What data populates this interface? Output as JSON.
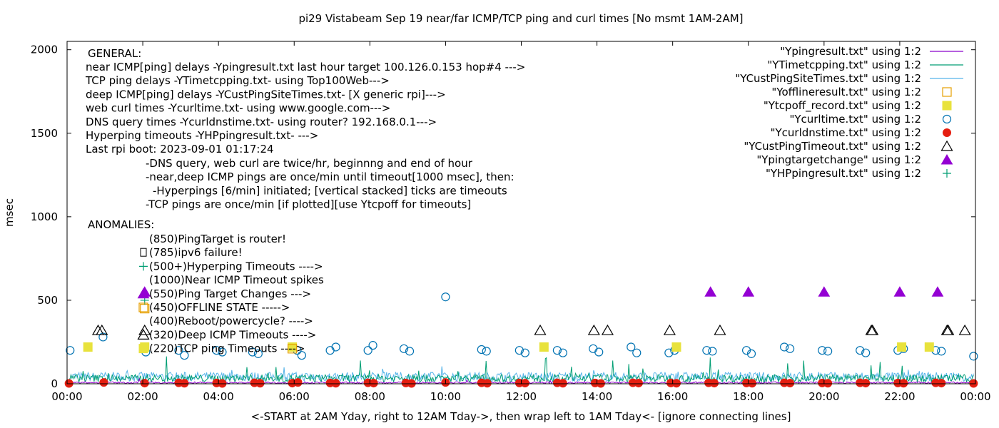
{
  "chart_data": {
    "type": "scatter",
    "title": "pi29 Vistabeam Sep 19  near/far ICMP/TCP ping and curl times [No msmt 1AM-2AM]",
    "xlabel": "<-START at 2AM Yday, right to 12AM Tday->, then wrap left to 1AM Tday<- [ignore connecting lines]",
    "ylabel": "msec",
    "x_unit": "hours",
    "xlim": [
      0,
      24
    ],
    "ylim": [
      0,
      2050
    ],
    "x_ticks": [
      0,
      2,
      4,
      6,
      8,
      10,
      12,
      14,
      16,
      18,
      20,
      22,
      24
    ],
    "x_tick_labels": [
      "00:00",
      "02:00",
      "04:00",
      "06:00",
      "08:00",
      "10:00",
      "12:00",
      "14:00",
      "16:00",
      "18:00",
      "20:00",
      "22:00",
      "00:00"
    ],
    "y_ticks": [
      0,
      500,
      1000,
      1500,
      2000
    ],
    "y_tick_labels": [
      "0",
      "500",
      "1000",
      "1500",
      "2000"
    ],
    "legend_position": "top-right",
    "legend": [
      {
        "label": "\"Ypingresult.txt\" using 1:2",
        "style": "line",
        "color": "#8b00c9"
      },
      {
        "label": "\"YTimetcpping.txt\" using 1:2",
        "style": "line",
        "color": "#009e73"
      },
      {
        "label": "\"YCustPingSiteTimes.txt\" using 1:2",
        "style": "line",
        "color": "#56b4e9"
      },
      {
        "label": "\"Yofflineresult.txt\" using 1:2",
        "style": "open-square",
        "color": "#e69f00"
      },
      {
        "label": "\"Ytcpoff_record.txt\" using 1:2",
        "style": "filled-square",
        "color": "#e8e23c"
      },
      {
        "label": "\"Ycurltime.txt\" using 1:2",
        "style": "open-circle",
        "color": "#0072b2"
      },
      {
        "label": "\"Ycurldnstime.txt\" using 1:2",
        "style": "filled-circle",
        "color": "#e51e10"
      },
      {
        "label": "\"YCustPingTimeout.txt\" using 1:2",
        "style": "open-triangle",
        "color": "#000000"
      },
      {
        "label": "\"Ypingtargetchange\" using 1:2",
        "style": "filled-triangle",
        "color": "#9400d3"
      },
      {
        "label": "\"YHPpingresult.txt\" using 1:2",
        "style": "plus",
        "color": "#009e73"
      }
    ],
    "annotations": {
      "general_header": "GENERAL:",
      "general_lines": [
        "near ICMP[ping] delays -Ypingresult.txt last hour target 100.126.0.153 hop#4 --->",
        "TCP ping delays -YTimetcpping.txt- using Top100Web--->",
        "deep ICMP[ping] delays -YCustPingSiteTimes.txt- [X generic rpi]--->",
        "web curl times -Ycurltime.txt- using www.google.com--->",
        "DNS query times -Ycurldnstime.txt- using router? 192.168.0.1--->",
        "Hyperping timeouts -YHPpingresult.txt- --->",
        "Last rpi boot: 2023-09-01 01:17:24"
      ],
      "notes": [
        "-DNS query, web curl are twice/hr, beginnng and end of hour",
        "-near,deep ICMP pings are once/min until timeout[1000 msec], then:",
        "  -Hyperpings [6/min] initiated; [vertical stacked] ticks are timeouts",
        "-TCP pings are once/min [if plotted][use Ytcpoff for timeouts]"
      ],
      "anomalies_header": "ANOMALIES:",
      "anomalies": [
        {
          "text": "(850)PingTarget is router!",
          "icon": "none"
        },
        {
          "text": "(785)ipv6 failure!",
          "icon": "missing-glyph-box"
        },
        {
          "text": "(500+)Hyperping Timeouts ---->",
          "icon": "plus"
        },
        {
          "text": "(1000)Near ICMP Timeout spikes",
          "icon": "none"
        },
        {
          "text": "(550)Ping Target Changes --->",
          "icon": "filled-triangle"
        },
        {
          "text": "(450)OFFLINE STATE ----->",
          "icon": "open-square"
        },
        {
          "text": "(400)Reboot/powercycle? ---->",
          "icon": "none"
        },
        {
          "text": "(320)Deep ICMP Timeouts ---->",
          "icon": "open-triangle"
        },
        {
          "text": "(220)TCP ping Timeouts ---->",
          "icon": "filled-square"
        }
      ]
    },
    "series": [
      {
        "name": "\"Ycurltime.txt\" using 1:2",
        "marker": "open-circle",
        "color": "#0072b2",
        "x": [
          0.08,
          0.95,
          2.08,
          2.95,
          3.1,
          3.95,
          4.1,
          4.9,
          5.05,
          6.08,
          6.2,
          6.95,
          7.1,
          7.95,
          8.08,
          8.9,
          9.05,
          10.0,
          10.95,
          11.08,
          11.95,
          12.1,
          12.95,
          13.1,
          13.9,
          14.05,
          14.9,
          15.05,
          15.9,
          16.05,
          16.9,
          17.05,
          17.95,
          18.08,
          18.95,
          19.1,
          19.95,
          20.1,
          20.95,
          21.1,
          21.95,
          22.1,
          22.95,
          23.1,
          23.95
        ],
        "y": [
          200,
          280,
          190,
          200,
          170,
          200,
          190,
          190,
          180,
          200,
          170,
          200,
          220,
          200,
          230,
          210,
          195,
          520,
          205,
          195,
          200,
          185,
          200,
          185,
          210,
          190,
          220,
          185,
          185,
          200,
          200,
          195,
          200,
          180,
          220,
          210,
          200,
          195,
          200,
          185,
          200,
          210,
          200,
          195,
          165
        ]
      },
      {
        "name": "\"Ycurldnstime.txt\" using 1:2",
        "marker": "filled-circle",
        "color": "#e51e10",
        "x": [
          0.05,
          0.97,
          2.05,
          2.95,
          3.1,
          3.95,
          4.1,
          4.95,
          5.1,
          5.95,
          6.1,
          6.95,
          7.1,
          7.95,
          8.1,
          8.95,
          9.1,
          10.0,
          10.95,
          11.1,
          11.95,
          12.1,
          12.95,
          13.1,
          13.95,
          14.1,
          14.95,
          15.1,
          15.95,
          16.1,
          16.95,
          17.1,
          17.95,
          18.1,
          18.95,
          19.1,
          19.95,
          20.1,
          20.95,
          21.1,
          21.95,
          22.1,
          22.95,
          23.1,
          23.95
        ],
        "y": [
          2,
          8,
          4,
          6,
          3,
          5,
          2,
          6,
          3,
          4,
          8,
          5,
          3,
          6,
          4,
          5,
          2,
          8,
          6,
          3,
          5,
          4,
          6,
          3,
          5,
          2,
          6,
          4,
          5,
          3,
          6,
          4,
          5,
          3,
          6,
          4,
          5,
          3,
          6,
          4,
          5,
          3,
          6,
          4,
          2
        ]
      },
      {
        "name": "\"YCustPingTimeout.txt\" using 1:2",
        "marker": "open-triangle",
        "color": "#000000",
        "x": [
          0.82,
          0.92,
          2.05,
          12.5,
          13.92,
          14.28,
          15.92,
          17.25,
          21.25,
          21.28,
          23.25,
          23.28,
          23.72
        ],
        "y": [
          320,
          320,
          320,
          320,
          320,
          320,
          320,
          320,
          320,
          320,
          320,
          320,
          320
        ]
      },
      {
        "name": "\"Ytcpoff_record.txt\" using 1:2",
        "marker": "filled-square",
        "color": "#e8e23c",
        "x": [
          0.55,
          2.05,
          5.95,
          12.6,
          16.1,
          22.05,
          22.78
        ],
        "y": [
          220,
          220,
          220,
          220,
          220,
          220,
          220
        ]
      },
      {
        "name": "\"Ypingtargetchange\" using 1:2",
        "marker": "filled-triangle",
        "color": "#9400d3",
        "x": [
          2.05,
          17.0,
          18.0,
          20.0,
          22.0,
          23.0
        ],
        "y": [
          550,
          550,
          550,
          550,
          550,
          550
        ]
      },
      {
        "name": "\"Yofflineresult.txt\" using 1:2",
        "marker": "open-square",
        "color": "#e69f00",
        "x": [
          2.05,
          5.95
        ],
        "y": [
          450,
          210
        ]
      },
      {
        "name": "\"YHPpingresult.txt\" using 1:2",
        "marker": "plus",
        "color": "#009e73",
        "x": [
          2.05
        ],
        "y": [
          500
        ]
      }
    ]
  }
}
